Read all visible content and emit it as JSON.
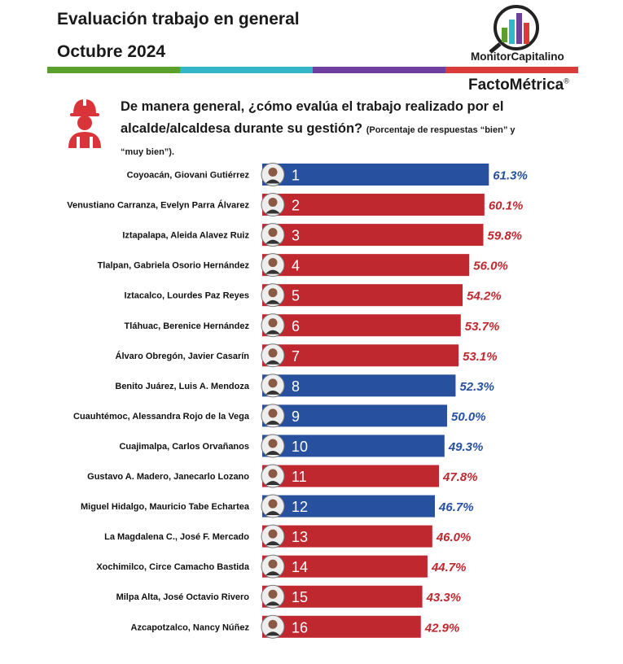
{
  "header": {
    "title_line1": "Evaluación trabajo en general",
    "title_line2": "Octubre 2024",
    "logo_name": "MonitorCapitalino",
    "brand": "FactoMétrica",
    "brand_mark": "®",
    "stripe_colors": [
      "#5aa02c",
      "#35b5c8",
      "#6f3fa0",
      "#d93a3a"
    ]
  },
  "question": {
    "text_line1": "De manera general, ¿cómo evalúa el trabajo realizado por el",
    "text_line2": "alcalde/alcaldesa durante su gestión?",
    "note_part1": "(Porcentaje de respuestas “bien” y",
    "note_part2": "“muy bien”)."
  },
  "colors": {
    "blue": "#27509e",
    "red": "#c0282f",
    "icon": "#d9343a"
  },
  "chart_data": {
    "type": "bar",
    "orientation": "horizontal",
    "xlim": [
      0,
      65
    ],
    "grid": false,
    "categories": [
      "Coyoacán, Giovani Gutiérrez",
      "Venustiano Carranza, Evelyn Parra Álvarez",
      "Iztapalapa, Aleida Alavez Ruiz",
      "Tlalpan, Gabriela Osorio Hernández",
      "Iztacalco, Lourdes Paz Reyes",
      "Tláhuac, Berenice Hernández",
      "Álvaro Obregón, Javier Casarín",
      "Benito Juárez, Luis A. Mendoza",
      "Cuauhtémoc, Alessandra Rojo de la Vega",
      "Cuajimalpa, Carlos Orvañanos",
      "Gustavo A. Madero, Janecarlo Lozano",
      "Miguel Hidalgo, Mauricio Tabe Echartea",
      "La Magdalena C., José F. Mercado",
      "Xochimilco, Circe Camacho Bastida",
      "Milpa Alta, José Octavio Rivero",
      "Azcapotzalco, Nancy Núñez"
    ],
    "ranks": [
      "1",
      "2",
      "3",
      "4",
      "5",
      "6",
      "7",
      "8",
      "9",
      "10",
      "11",
      "12",
      "13",
      "14",
      "15",
      "16"
    ],
    "values": [
      61.3,
      60.1,
      59.8,
      56.0,
      54.2,
      53.7,
      53.1,
      52.3,
      50.0,
      49.3,
      47.8,
      46.7,
      46.0,
      44.7,
      43.3,
      42.9
    ],
    "value_labels": [
      "61.3%",
      "60.1%",
      "59.8%",
      "56.0%",
      "54.2%",
      "53.7%",
      "53.1%",
      "52.3%",
      "50.0%",
      "49.3%",
      "47.8%",
      "46.7%",
      "46.0%",
      "44.7%",
      "43.3%",
      "42.9%"
    ],
    "bar_colors": [
      "blue",
      "red",
      "red",
      "red",
      "red",
      "red",
      "red",
      "blue",
      "blue",
      "blue",
      "red",
      "blue",
      "red",
      "red",
      "red",
      "red"
    ]
  }
}
